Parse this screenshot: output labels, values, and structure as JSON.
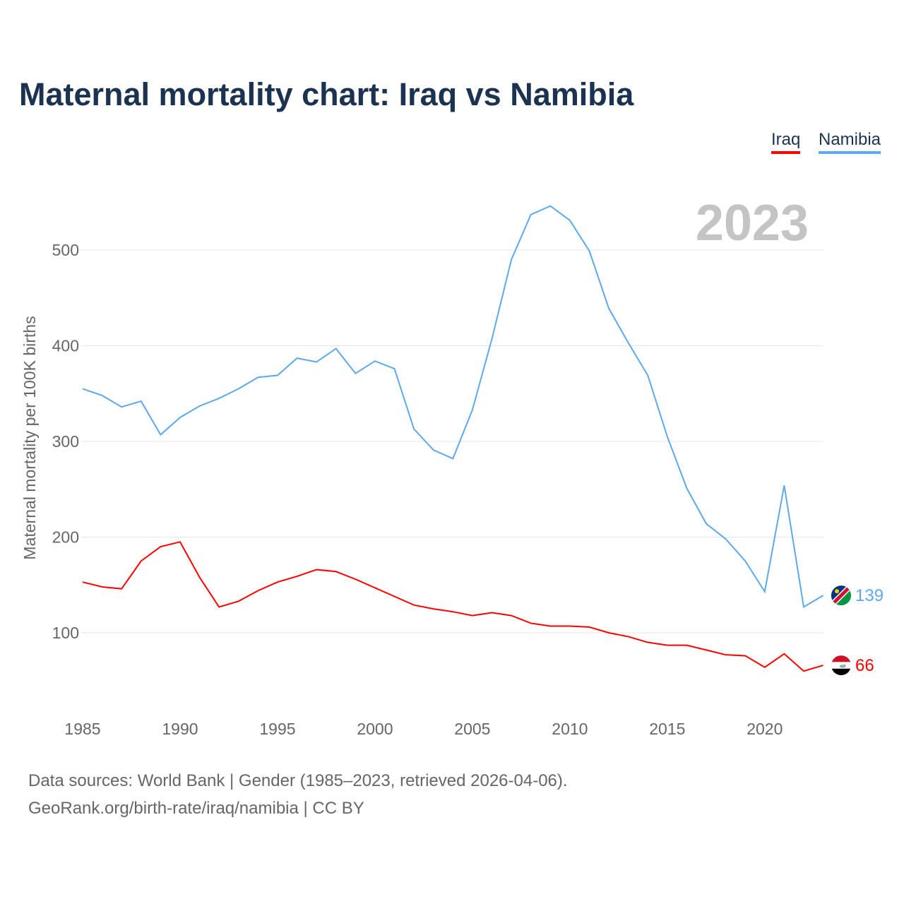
{
  "title": "Maternal mortality chart: Iraq vs Namibia",
  "year_label": "2023",
  "source_line1": "Data sources: World Bank | Gender (1985–2023, retrieved 2026-04-06).",
  "source_line2": "GeoRank.org/birth-rate/iraq/namibia | CC BY",
  "chart_data": {
    "type": "line",
    "title": "Maternal mortality chart: Iraq vs Namibia",
    "xlabel": "",
    "ylabel": "Maternal mortality per 100K births",
    "xlim": [
      1985,
      2023
    ],
    "ylim": [
      0,
      560
    ],
    "xticks": [
      1985,
      1990,
      1995,
      2000,
      2005,
      2010,
      2015,
      2020
    ],
    "yticks": [
      100,
      200,
      300,
      400,
      500
    ],
    "grid": true,
    "legend_position": "top-right",
    "x": [
      1985,
      1986,
      1987,
      1988,
      1989,
      1990,
      1991,
      1992,
      1993,
      1994,
      1995,
      1996,
      1997,
      1998,
      1999,
      2000,
      2001,
      2002,
      2003,
      2004,
      2005,
      2006,
      2007,
      2008,
      2009,
      2010,
      2011,
      2012,
      2013,
      2014,
      2015,
      2016,
      2017,
      2018,
      2019,
      2020,
      2021,
      2022,
      2023
    ],
    "series": [
      {
        "name": "Iraq",
        "color": "#ff0000",
        "end_label": "66",
        "values": [
          153,
          148,
          146,
          175,
          190,
          195,
          158,
          127,
          133,
          144,
          153,
          159,
          166,
          164,
          156,
          147,
          138,
          129,
          125,
          122,
          118,
          121,
          118,
          110,
          107,
          107,
          106,
          100,
          96,
          90,
          87,
          87,
          82,
          77,
          76,
          64,
          78,
          60,
          66
        ]
      },
      {
        "name": "Namibia",
        "color": "#5fa8ec",
        "end_label": "139",
        "values": [
          355,
          348,
          336,
          342,
          307,
          325,
          337,
          345,
          355,
          367,
          369,
          387,
          383,
          397,
          371,
          384,
          376,
          313,
          291,
          282,
          333,
          407,
          490,
          537,
          546,
          531,
          499,
          439,
          403,
          369,
          305,
          251,
          214,
          198,
          175,
          143,
          254,
          127,
          139
        ]
      }
    ]
  }
}
